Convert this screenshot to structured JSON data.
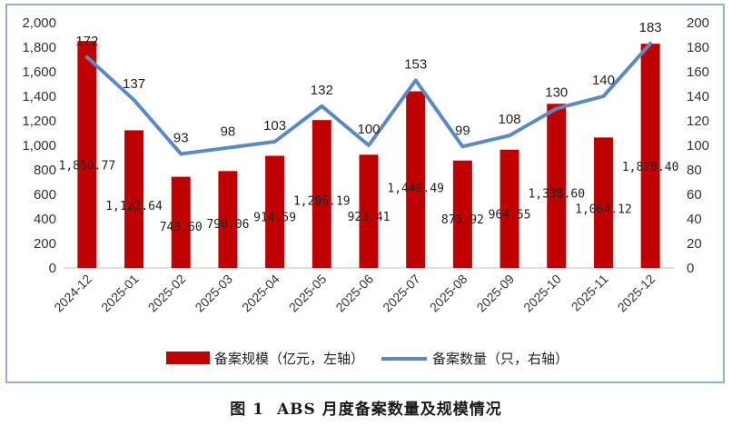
{
  "chart_data": {
    "type": "bar",
    "categories": [
      "2024-12",
      "2025-01",
      "2025-02",
      "2025-03",
      "2025-04",
      "2025-05",
      "2025-06",
      "2025-07",
      "2025-08",
      "2025-09",
      "2025-10",
      "2025-11",
      "2025-12"
    ],
    "series": [
      {
        "name": "备案规模（亿元，左轴）",
        "type": "bar",
        "axis": "left",
        "color": "#c00000",
        "values": [
          1850.77,
          1122.64,
          743.6,
          790.06,
          914.59,
          1206.19,
          923.41,
          1440.49,
          875.92,
          964.55,
          1338.6,
          1064.12,
          1828.4
        ],
        "labels": [
          "1,850.77",
          "1,122.64",
          "743.60",
          "790.06",
          "914.59",
          "1,206.19",
          "923.41",
          "1,440.49",
          "875.92",
          "964.55",
          "1,338.60",
          "1,064.12",
          "1,828.40"
        ]
      },
      {
        "name": "备案数量（只，右轴）",
        "type": "line",
        "axis": "right",
        "color": "#5a8ac6",
        "values": [
          172,
          137,
          93,
          98,
          103,
          132,
          100,
          153,
          99,
          108,
          130,
          140,
          183
        ],
        "labels": [
          "172",
          "137",
          "93",
          "98",
          "103",
          "132",
          "100",
          "153",
          "99",
          "108",
          "130",
          "140",
          "183"
        ]
      }
    ],
    "y_left": {
      "min": 0,
      "max": 2000,
      "ticks": [
        "0",
        "200",
        "400",
        "600",
        "800",
        "1,000",
        "1,200",
        "1,400",
        "1,600",
        "1,800",
        "2,000"
      ]
    },
    "y_right": {
      "min": 0,
      "max": 200,
      "ticks": [
        "0",
        "20",
        "40",
        "60",
        "80",
        "100",
        "120",
        "140",
        "160",
        "180",
        "200"
      ]
    },
    "grid": false,
    "legend_position": "bottom"
  },
  "caption": {
    "figure_no": "图 1",
    "text": "ABS 月度备案数量及规模情况"
  }
}
